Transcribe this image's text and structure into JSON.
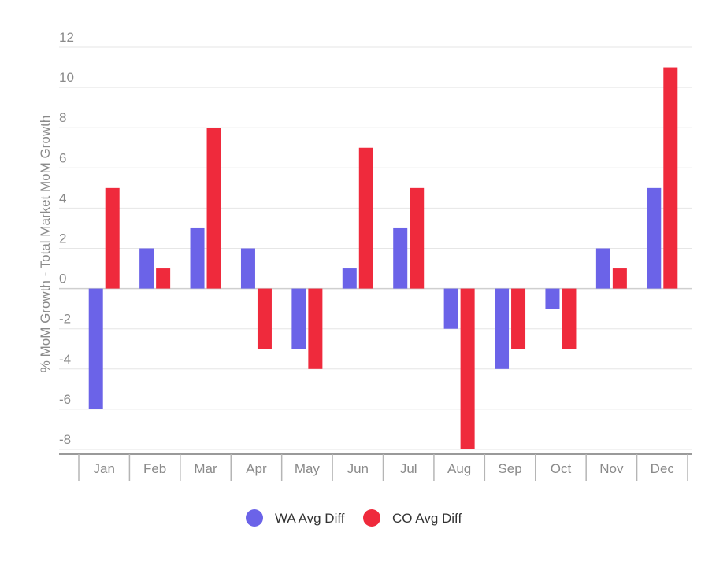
{
  "chart_data": {
    "type": "bar",
    "categories": [
      "Jan",
      "Feb",
      "Mar",
      "Apr",
      "May",
      "Jun",
      "Jul",
      "Aug",
      "Sep",
      "Oct",
      "Nov",
      "Dec"
    ],
    "series": [
      {
        "name": "WA Avg Diff",
        "color": "#6b63e8",
        "values": [
          -6,
          2,
          3,
          2,
          -3,
          1,
          3,
          -2,
          -4,
          -1,
          2,
          5
        ]
      },
      {
        "name": "CO Avg Diff",
        "color": "#ef2a3c",
        "values": [
          5,
          1,
          8,
          -3,
          -4,
          7,
          5,
          -8,
          -3,
          -3,
          1,
          11
        ]
      }
    ],
    "ylabel": "% MoM Growth - Total Market MoM Growth",
    "xlabel": "",
    "ylim": [
      -8,
      12
    ],
    "yticks": [
      12,
      10,
      8,
      6,
      4,
      2,
      0,
      -2,
      -4,
      -6,
      -8
    ],
    "grid": true,
    "legend": "bottom-center"
  }
}
